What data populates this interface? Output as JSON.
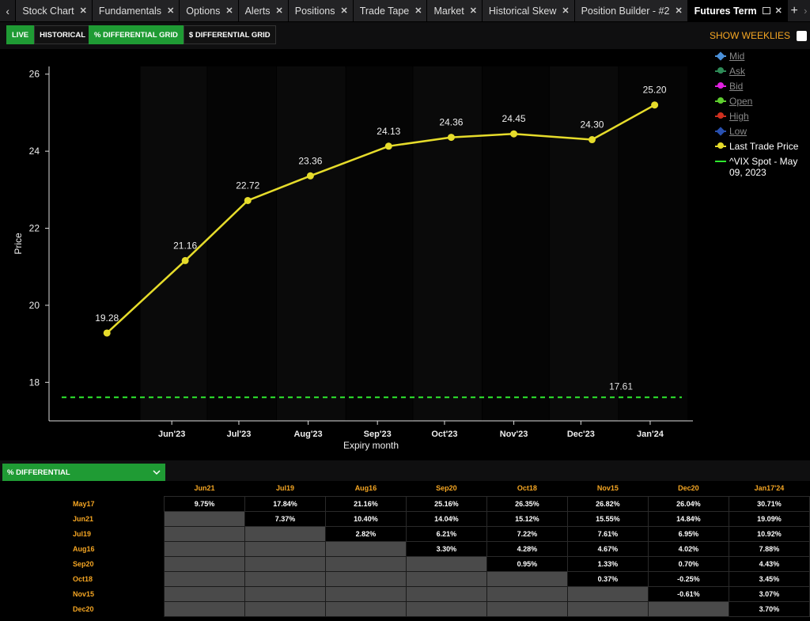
{
  "tabs": [
    {
      "label": "Stock Chart",
      "active": false
    },
    {
      "label": "Fundamentals",
      "active": false
    },
    {
      "label": "Options",
      "active": false
    },
    {
      "label": "Alerts",
      "active": false
    },
    {
      "label": "Positions",
      "active": false
    },
    {
      "label": "Trade Tape",
      "active": false
    },
    {
      "label": "Market",
      "active": false
    },
    {
      "label": "Historical Skew",
      "active": false
    },
    {
      "label": "Position Builder - #2",
      "active": false
    },
    {
      "label": "Futures Term",
      "active": true
    }
  ],
  "tab_controls": {
    "back": "‹",
    "add": "+",
    "forward": "›"
  },
  "toolbar": {
    "live": "LIVE",
    "historical": "HISTORICAL",
    "pct_grid": "% DIFFERENTIAL GRID",
    "dollar_grid": "$ DIFFERENTIAL GRID",
    "show_weeklies": "SHOW WEEKLIES"
  },
  "colors": {
    "accent_green": "#1f9b34",
    "orange": "#f5a623",
    "line_yellow": "#e6dc2b",
    "spot_green": "#2ee82e"
  },
  "legend": [
    {
      "label": "Mid",
      "color": "#4a90d9",
      "active": false
    },
    {
      "label": "Ask",
      "color": "#2e8b57",
      "active": false
    },
    {
      "label": "Bid",
      "color": "#e020e0",
      "active": false
    },
    {
      "label": "Open",
      "color": "#5fcf2f",
      "active": false
    },
    {
      "label": "High",
      "color": "#d0301f",
      "active": false
    },
    {
      "label": "Low",
      "color": "#2850b0",
      "active": false
    },
    {
      "label": "Last Trade Price",
      "color": "#e6dc2b",
      "active": true
    },
    {
      "label": "^VIX Spot - May 09, 2023",
      "color": "#2ee82e",
      "active": true
    }
  ],
  "chart_data": {
    "type": "line",
    "xlabel": "Expiry month",
    "ylabel": "Price",
    "x_tick_labels": [
      "Jun'23",
      "Jul'23",
      "Aug'23",
      "Sep'23",
      "Oct'23",
      "Nov'23",
      "Dec'23",
      "Jan'24"
    ],
    "y_ticks": [
      18,
      20,
      22,
      24,
      26
    ],
    "ylim": [
      17,
      26.2
    ],
    "grid": false,
    "series": [
      {
        "name": "Last Trade Price",
        "x": [
          "2023-05-17",
          "2023-06-21",
          "2023-07-19",
          "2023-08-16",
          "2023-09-20",
          "2023-10-18",
          "2023-11-15",
          "2023-12-20",
          "2024-01-17"
        ],
        "values": [
          19.28,
          21.16,
          22.72,
          23.36,
          24.13,
          24.36,
          24.45,
          24.3,
          25.2
        ]
      }
    ],
    "spot": {
      "name": "^VIX Spot - May 09, 2023",
      "value": 17.61
    }
  },
  "differential": {
    "dropdown_label": "% DIFFERENTIAL",
    "columns": [
      "Jun21",
      "Jul19",
      "Aug16",
      "Sep20",
      "Oct18",
      "Nov15",
      "Dec20",
      "Jan17'24"
    ],
    "rows": [
      {
        "label": "May17",
        "cells": [
          "9.75%",
          "17.84%",
          "21.16%",
          "25.16%",
          "26.35%",
          "26.82%",
          "26.04%",
          "30.71%"
        ]
      },
      {
        "label": "Jun21",
        "cells": [
          "",
          "7.37%",
          "10.40%",
          "14.04%",
          "15.12%",
          "15.55%",
          "14.84%",
          "19.09%"
        ]
      },
      {
        "label": "Jul19",
        "cells": [
          "",
          "",
          "2.82%",
          "6.21%",
          "7.22%",
          "7.61%",
          "6.95%",
          "10.92%"
        ]
      },
      {
        "label": "Aug16",
        "cells": [
          "",
          "",
          "",
          "3.30%",
          "4.28%",
          "4.67%",
          "4.02%",
          "7.88%"
        ]
      },
      {
        "label": "Sep20",
        "cells": [
          "",
          "",
          "",
          "",
          "0.95%",
          "1.33%",
          "0.70%",
          "4.43%"
        ]
      },
      {
        "label": "Oct18",
        "cells": [
          "",
          "",
          "",
          "",
          "",
          "0.37%",
          "-0.25%",
          "3.45%"
        ]
      },
      {
        "label": "Nov15",
        "cells": [
          "",
          "",
          "",
          "",
          "",
          "",
          "-0.61%",
          "3.07%"
        ]
      },
      {
        "label": "Dec20",
        "cells": [
          "",
          "",
          "",
          "",
          "",
          "",
          "",
          "3.70%"
        ]
      }
    ]
  }
}
